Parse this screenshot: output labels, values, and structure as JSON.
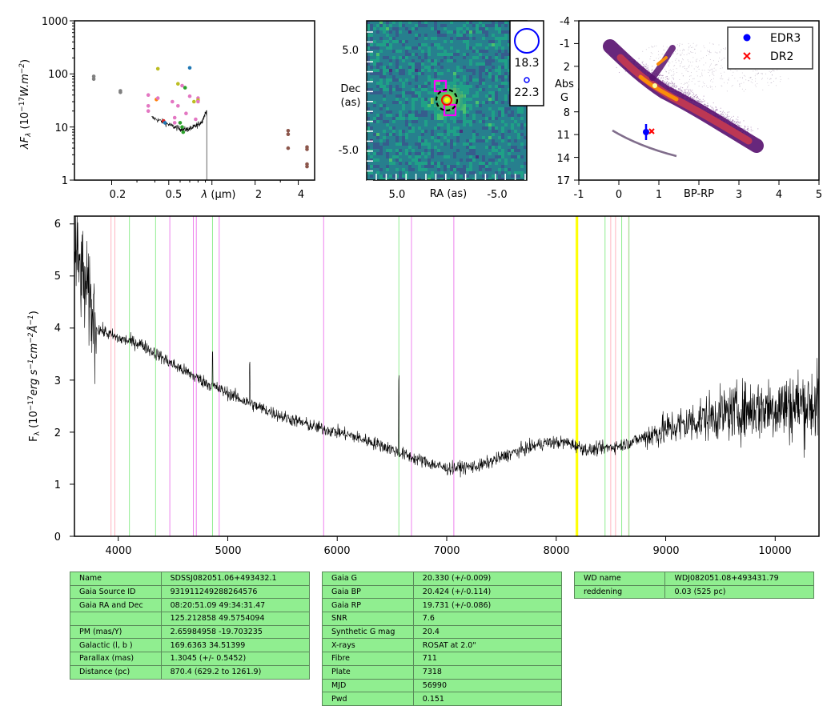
{
  "sed": {
    "ylabel": "λF",
    "ylabel_sub": "λ",
    "ylabel_units": " (10",
    "ylabel_exp": "−17",
    "ylabel_w": "W.m",
    "ylabel_exp2": "−2",
    "ylabel_close": ")",
    "xlabel_pre": "λ",
    "xlabel_post": " (μm)",
    "y_ticks": [
      "1",
      "10",
      "100",
      "1000"
    ],
    "x_ticks": [
      "0.2",
      "0.5",
      "2",
      "4"
    ]
  },
  "cutout": {
    "xlabel": "RA (as)",
    "ylabel_line1": "Dec",
    "ylabel_line2": "(as)",
    "x_ticks": [
      "5.0",
      "-5.0"
    ],
    "y_ticks": [
      "5.0",
      "-5.0"
    ],
    "legend": [
      "18.3",
      "22.3"
    ]
  },
  "hr": {
    "xlabel": "BP-RP",
    "ylabel_line1": "Abs",
    "ylabel_line2": "G",
    "x_ticks": [
      "-1",
      "0",
      "1",
      "3",
      "4",
      "5"
    ],
    "y_ticks": [
      "-4",
      "-1",
      "2",
      "5",
      "8",
      "11",
      "14",
      "17"
    ],
    "legend": [
      "EDR3",
      "DR2"
    ]
  },
  "spectrum": {
    "ylabel_pre": "F",
    "ylabel_sub": "λ",
    "ylabel_units": " (10",
    "ylabel_exp": "−17",
    "ylabel_erg": "erg s",
    "ylabel_exp2": "−1",
    "ylabel_cm": "cm",
    "ylabel_exp3": "−2",
    "ylabel_ang": "Å",
    "ylabel_exp4": "−1",
    "ylabel_close": ")",
    "x_ticks": [
      "4000",
      "5000",
      "6000",
      "7000",
      "8000",
      "9000",
      "10000"
    ],
    "y_ticks": [
      "0",
      "1",
      "2",
      "3",
      "4",
      "5",
      "6"
    ]
  },
  "chart_data": [
    {
      "type": "scatter",
      "xscale": "log",
      "yscale": "log",
      "xlim": [
        0.11,
        5.2
      ],
      "ylim": [
        1,
        1000
      ],
      "points_x": [
        0.15,
        0.15,
        0.23,
        0.23,
        0.36,
        0.36,
        0.36,
        0.41,
        0.42,
        0.42,
        0.46,
        0.47,
        0.53,
        0.55,
        0.55,
        0.58,
        0.58,
        0.62,
        0.62,
        0.63,
        0.65,
        0.66,
        0.7,
        0.7,
        0.75,
        0.77,
        0.8,
        0.8,
        0.8,
        0.6,
        3.4,
        3.4,
        3.4,
        4.6,
        4.6,
        4.6,
        4.6
      ],
      "points_y": [
        90,
        80,
        48,
        45,
        40,
        25,
        20,
        33,
        125,
        35,
        13,
        12,
        30,
        15,
        12,
        65,
        25,
        60,
        10,
        8,
        55,
        18,
        130,
        38,
        30,
        14,
        35,
        32,
        30,
        12,
        8.5,
        7.3,
        4,
        4.2,
        3.8,
        2,
        1.8
      ],
      "points_color": [
        "#7f7f7f",
        "#7f7f7f",
        "#7f7f7f",
        "#7f7f7f",
        "#e377c2",
        "#e377c2",
        "#e377c2",
        "#ff7f0e",
        "#bcbd22",
        "#e377c2",
        "#d62728",
        "#1f77b4",
        "#e377c2",
        "#e377c2",
        "#e377c2",
        "#bcbd22",
        "#e377c2",
        "#e377c2",
        "#2ca02c",
        "#2ca02c",
        "#2ca02c",
        "#e377c2",
        "#1f77b4",
        "#e377c2",
        "#bcbd22",
        "#e377c2",
        "#e377c2",
        "#bcbd22",
        "#e377c2",
        "#2ca02c",
        "#8c564b",
        "#8c564b",
        "#8c564b",
        "#8c564b",
        "#8c564b",
        "#8c564b",
        "#8c564b"
      ],
      "spectrum_range_um": [
        0.38,
        0.92
      ]
    },
    {
      "type": "heatmap",
      "xlim": [
        7.5,
        -7.5
      ],
      "ylim": [
        -7.5,
        7.5
      ],
      "source_offset_as": [
        0,
        0
      ],
      "cmap": "viridis"
    },
    {
      "type": "scatter",
      "xlim": [
        -1,
        5
      ],
      "ylim": [
        17,
        -4
      ],
      "xlabel": "BP-RP",
      "ylabel": "Abs G",
      "series": [
        {
          "name": "EDR3",
          "x": [
            0.68
          ],
          "y": [
            10.5
          ],
          "yerr": [
            0.8
          ],
          "color": "#0000ff",
          "marker": "circle"
        },
        {
          "name": "DR2",
          "x": [
            0.82
          ],
          "y": [
            10.3
          ],
          "color": "#ff0000",
          "marker": "x"
        }
      ],
      "legend_loc": "upper right"
    },
    {
      "type": "line",
      "xlim": [
        3600,
        10400
      ],
      "ylim": [
        0,
        6.15
      ],
      "continuum_anchors_x": [
        3600,
        3800,
        4000,
        4200,
        4500,
        4800,
        5000,
        5200,
        5500,
        5800,
        6100,
        6400,
        6700,
        7000,
        7300,
        7600,
        7900,
        8100,
        8300,
        8600,
        9000,
        9400,
        9800,
        10100,
        10400
      ],
      "continuum_anchors_y": [
        5.5,
        4.0,
        3.8,
        3.7,
        3.3,
        2.95,
        2.75,
        2.55,
        2.3,
        2.1,
        1.95,
        1.75,
        1.5,
        1.3,
        1.35,
        1.6,
        1.8,
        1.8,
        1.65,
        1.75,
        2.05,
        2.3,
        2.45,
        2.5,
        2.55
      ],
      "line_markers": [
        {
          "x": 3934,
          "color": "#ffb6c1"
        },
        {
          "x": 3969,
          "color": "#ffb6c1"
        },
        {
          "x": 4102,
          "color": "#90ee90"
        },
        {
          "x": 4341,
          "color": "#90ee90"
        },
        {
          "x": 4471,
          "color": "#ee82ee"
        },
        {
          "x": 4686,
          "color": "#ee82ee"
        },
        {
          "x": 4713,
          "color": "#ee82ee"
        },
        {
          "x": 4861,
          "color": "#90ee90"
        },
        {
          "x": 4922,
          "color": "#ee82ee"
        },
        {
          "x": 5876,
          "color": "#ee82ee"
        },
        {
          "x": 6563,
          "color": "#90ee90"
        },
        {
          "x": 6678,
          "color": "#ee82ee"
        },
        {
          "x": 7065,
          "color": "#ee82ee"
        },
        {
          "x": 8183,
          "color": "#ffff00"
        },
        {
          "x": 8195,
          "color": "#ffff00"
        },
        {
          "x": 8446,
          "color": "#90ee90"
        },
        {
          "x": 8498,
          "color": "#ffb6c1"
        },
        {
          "x": 8542,
          "color": "#ffb6c1"
        },
        {
          "x": 8598,
          "color": "#90ee90"
        },
        {
          "x": 8662,
          "color": "#ffb6c1"
        },
        {
          "x": 8665,
          "color": "#90ee90"
        }
      ]
    }
  ],
  "tables": {
    "left": [
      [
        "Name",
        "SDSSJ082051.06+493432.1"
      ],
      [
        "Gaia Source ID",
        "931911249288264576"
      ],
      [
        "Gaia RA and Dec",
        "08:20:51.09     49:34:31.47"
      ],
      [
        "",
        "125.212858     49.5754094"
      ],
      [
        "PM (mas/Y)",
        "2.65984958     -19.703235"
      ],
      [
        "Galactic (l, b )",
        "169.6363     34.51399"
      ],
      [
        "Parallax (mas)",
        "1.3045 (+/- 0.5452)"
      ],
      [
        "Distance (pc)",
        "870.4 (629.2 to 1261.9)"
      ]
    ],
    "middle": [
      [
        "Gaia G",
        "20.330 (+/-0.009)"
      ],
      [
        "Gaia BP",
        "20.424 (+/-0.114)"
      ],
      [
        "Gaia RP",
        "19.731 (+/-0.086)"
      ],
      [
        "SNR",
        "7.6"
      ],
      [
        "Synthetic G mag",
        "20.4"
      ],
      [
        "X-rays",
        "ROSAT at 2.0\""
      ],
      [
        "Fibre",
        "711"
      ],
      [
        "Plate",
        "7318"
      ],
      [
        "MJD",
        "56990"
      ],
      [
        "Pwd",
        "0.151"
      ]
    ],
    "right": [
      [
        "WD name",
        "WDJ082051.08+493431.79"
      ],
      [
        "reddening",
        "0.03 (525 pc)"
      ]
    ]
  }
}
